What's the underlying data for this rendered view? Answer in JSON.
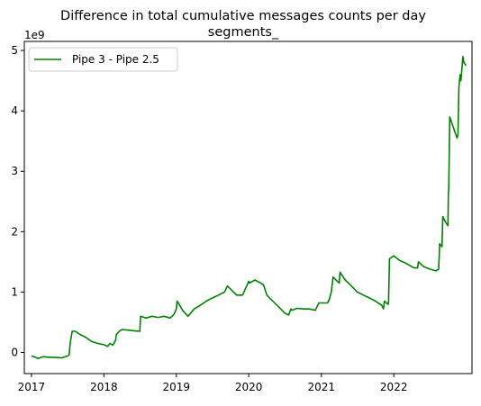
{
  "chart_data": {
    "type": "line",
    "title": "Difference in total cumulative messages counts per day",
    "subtitle": "segments_",
    "xlabel": "",
    "ylabel": "",
    "y_offset_label": "1e9",
    "x_axis": "date",
    "xlim": [
      "2016-11-26",
      "2023-01-30"
    ],
    "ylim": [
      -0.35,
      5.15
    ],
    "x_ticks": [
      "2017-01-01",
      "2018-01-01",
      "2019-01-01",
      "2020-01-01",
      "2021-01-01",
      "2022-01-01"
    ],
    "x_tick_labels": [
      "2017",
      "2018",
      "2019",
      "2020",
      "2021",
      "2022"
    ],
    "y_ticks": [
      0,
      1,
      2,
      3,
      4,
      5
    ],
    "y_tick_labels": [
      "0",
      "1",
      "2",
      "3",
      "4",
      "5"
    ],
    "legend_position": "top-left",
    "grid": false,
    "series": [
      {
        "name": "Pipe 3 - Pipe 2.5",
        "color": "#008000",
        "x": [
          "2017-01-01",
          "2017-01-15",
          "2017-02-01",
          "2017-03-01",
          "2017-04-01",
          "2017-05-01",
          "2017-06-01",
          "2017-07-01",
          "2017-07-10",
          "2017-07-15",
          "2017-07-25",
          "2017-08-10",
          "2017-09-01",
          "2017-10-01",
          "2017-11-01",
          "2017-12-01",
          "2018-01-01",
          "2018-01-20",
          "2018-02-01",
          "2018-02-15",
          "2018-03-01",
          "2018-03-05",
          "2018-03-20",
          "2018-04-01",
          "2018-05-01",
          "2018-06-01",
          "2018-07-01",
          "2018-07-05",
          "2018-08-01",
          "2018-09-01",
          "2018-10-01",
          "2018-11-01",
          "2018-12-01",
          "2018-12-20",
          "2019-01-01",
          "2019-01-05",
          "2019-01-15",
          "2019-02-01",
          "2019-03-01",
          "2019-04-01",
          "2019-05-01",
          "2019-06-01",
          "2019-07-01",
          "2019-08-01",
          "2019-09-01",
          "2019-09-15",
          "2019-10-01",
          "2019-11-01",
          "2019-12-01",
          "2020-01-01",
          "2020-01-05",
          "2020-02-01",
          "2020-03-01",
          "2020-03-15",
          "2020-04-01",
          "2020-05-01",
          "2020-06-01",
          "2020-07-01",
          "2020-07-20",
          "2020-08-01",
          "2020-08-05",
          "2020-09-01",
          "2020-10-01",
          "2020-11-01",
          "2020-12-01",
          "2020-12-20",
          "2021-01-01",
          "2021-02-01",
          "2021-02-10",
          "2021-02-20",
          "2021-03-01",
          "2021-03-15",
          "2021-04-01",
          "2021-04-05",
          "2021-05-01",
          "2021-06-01",
          "2021-07-01",
          "2021-08-01",
          "2021-09-01",
          "2021-10-01",
          "2021-11-01",
          "2021-11-10",
          "2021-11-15",
          "2021-12-01",
          "2021-12-05",
          "2021-12-10",
          "2022-01-01",
          "2022-02-01",
          "2022-03-01",
          "2022-04-01",
          "2022-04-15",
          "2022-05-01",
          "2022-05-05",
          "2022-06-01",
          "2022-07-01",
          "2022-08-01",
          "2022-08-15",
          "2022-08-20",
          "2022-09-01",
          "2022-09-05",
          "2022-09-20",
          "2022-10-01",
          "2022-10-03",
          "2022-10-05",
          "2022-10-10",
          "2022-11-10",
          "2022-11-15",
          "2022-11-20",
          "2022-11-25",
          "2022-12-01",
          "2022-12-05",
          "2022-12-10",
          "2022-12-15",
          "2022-12-20",
          "2022-12-31"
        ],
        "y": [
          -0.06,
          -0.07,
          -0.1,
          -0.07,
          -0.08,
          -0.08,
          -0.09,
          -0.06,
          -0.04,
          0.15,
          0.35,
          0.35,
          0.3,
          0.25,
          0.18,
          0.15,
          0.13,
          0.1,
          0.15,
          0.12,
          0.2,
          0.3,
          0.35,
          0.38,
          0.37,
          0.36,
          0.35,
          0.6,
          0.57,
          0.6,
          0.58,
          0.6,
          0.57,
          0.63,
          0.72,
          0.85,
          0.8,
          0.7,
          0.6,
          0.72,
          0.78,
          0.85,
          0.9,
          0.95,
          1.0,
          1.1,
          1.05,
          0.95,
          0.95,
          1.18,
          1.15,
          1.2,
          1.15,
          1.12,
          0.95,
          0.85,
          0.75,
          0.65,
          0.62,
          0.72,
          0.7,
          0.73,
          0.72,
          0.72,
          0.7,
          0.82,
          0.82,
          0.82,
          0.88,
          1.0,
          1.25,
          1.2,
          1.15,
          1.33,
          1.2,
          1.1,
          1.0,
          0.95,
          0.9,
          0.85,
          0.78,
          0.72,
          0.85,
          0.8,
          0.8,
          1.55,
          1.6,
          1.52,
          1.48,
          1.42,
          1.4,
          1.4,
          1.5,
          1.42,
          1.38,
          1.35,
          1.38,
          1.8,
          1.75,
          2.25,
          2.15,
          2.1,
          2.65,
          2.7,
          3.9,
          3.6,
          3.55,
          3.6,
          4.4,
          4.6,
          4.5,
          4.7,
          4.9,
          4.8,
          4.75
        ]
      }
    ]
  }
}
